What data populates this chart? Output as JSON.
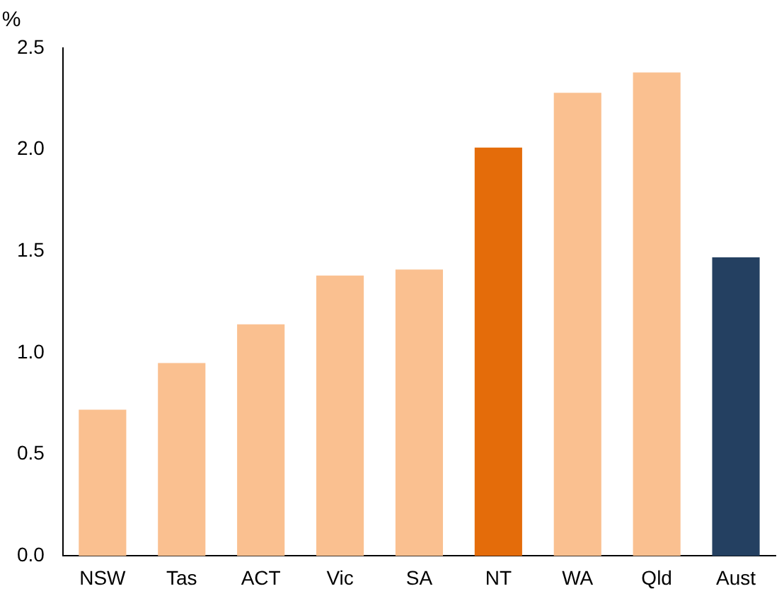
{
  "chart_data": {
    "type": "bar",
    "ylabel": "%",
    "categories": [
      "NSW",
      "Tas",
      "ACT",
      "Vic",
      "SA",
      "NT",
      "WA",
      "Qld",
      "Aust"
    ],
    "values": [
      0.72,
      0.95,
      1.14,
      1.38,
      1.41,
      2.01,
      2.28,
      2.38,
      1.47
    ],
    "colors": [
      "#fac090",
      "#fac090",
      "#fac090",
      "#fac090",
      "#fac090",
      "#e46c0a",
      "#fac090",
      "#fac090",
      "#244061"
    ],
    "ylim": [
      0,
      2.5
    ],
    "yticks": [
      {
        "value": 0,
        "label": "0.0"
      },
      0.5,
      {
        "value": 1,
        "label": "1.0"
      },
      1.5,
      {
        "value": 2,
        "label": "2.0"
      },
      2.5
    ],
    "grid": false,
    "legend": false
  }
}
